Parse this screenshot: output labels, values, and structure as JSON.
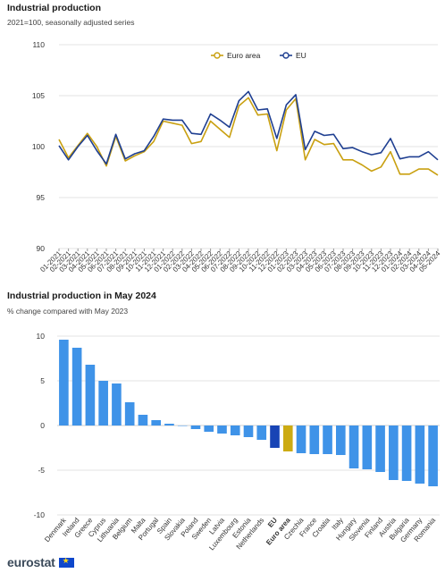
{
  "charts": {
    "line": {
      "title": "Industrial production",
      "subtitle": "2021=100, seasonally adjusted series"
    },
    "bar": {
      "title": "Industrial production in May 2024",
      "subtitle": "% change compared with May 2023"
    }
  },
  "footer": {
    "brand": "eurostat"
  },
  "colors": {
    "euro_area": "#c9a010",
    "eu": "#1f3f91",
    "bar_country": "#3f93e8",
    "bar_eu": "#1844b5",
    "bar_euro_area": "#ccab13",
    "grid": "#e3e3e3"
  },
  "chart_data": [
    {
      "type": "line",
      "title": "Industrial production",
      "subtitle": "2021=100, seasonally adjusted series",
      "x": [
        "01-2021",
        "02-2021",
        "03-2021",
        "04-2021",
        "05-2021",
        "06-2021",
        "07-2021",
        "08-2021",
        "09-2021",
        "10-2021",
        "11-2021",
        "12-2021",
        "01-2022",
        "02-2022",
        "03-2022",
        "04-2022",
        "05-2022",
        "06-2022",
        "07-2022",
        "08-2022",
        "09-2022",
        "10-2022",
        "11-2022",
        "12-2022",
        "01-2023",
        "02-2023",
        "03-2023",
        "04-2023",
        "05-2023",
        "06-2023",
        "07-2023",
        "08-2023",
        "09-2023",
        "10-2023",
        "11-2023",
        "12-2023",
        "01-2024",
        "02-2024",
        "03-2024",
        "04-2024",
        "05-2024"
      ],
      "series": [
        {
          "name": "Euro area",
          "color": "#c9a010",
          "values": [
            100.7,
            98.9,
            100.1,
            101.3,
            100.0,
            98.1,
            101.0,
            98.6,
            99.1,
            99.5,
            100.5,
            102.5,
            102.3,
            102.1,
            100.3,
            100.5,
            102.5,
            101.7,
            100.9,
            104.0,
            104.8,
            103.1,
            103.2,
            99.6,
            103.6,
            104.7,
            98.7,
            100.7,
            100.2,
            100.3,
            98.7,
            98.7,
            98.2,
            97.6,
            98.0,
            99.5,
            97.3,
            97.3,
            97.8,
            97.8,
            97.2
          ]
        },
        {
          "name": "EU",
          "color": "#1f3f91",
          "values": [
            100.1,
            98.7,
            100.0,
            101.1,
            99.6,
            98.3,
            101.2,
            98.8,
            99.3,
            99.6,
            101.0,
            102.7,
            102.6,
            102.6,
            101.3,
            101.2,
            103.2,
            102.6,
            101.9,
            104.5,
            105.4,
            103.6,
            103.7,
            100.8,
            104.1,
            105.1,
            99.7,
            101.5,
            101.1,
            101.2,
            99.8,
            99.9,
            99.5,
            99.2,
            99.4,
            100.8,
            98.8,
            99.0,
            99.0,
            99.5,
            98.7
          ]
        }
      ],
      "ylim": [
        90,
        110
      ],
      "yticks": [
        90,
        95,
        100,
        105,
        110
      ],
      "legend": "top-center",
      "grid": true
    },
    {
      "type": "bar",
      "title": "Industrial production in May 2024",
      "subtitle": "% change compared with May 2023",
      "categories": [
        "Denmark",
        "Ireland",
        "Greece",
        "Cyprus",
        "Lithuania",
        "Belgium",
        "Malta",
        "Portugal",
        "Spain",
        "Slovakia",
        "Poland",
        "Sweden",
        "Latvia",
        "Luxembourg",
        "Estonia",
        "Netherlands",
        "EU",
        "Euro area",
        "Czechia",
        "France",
        "Croatia",
        "Italy",
        "Hungary",
        "Slovenia",
        "Finland",
        "Austria",
        "Bulgaria",
        "Germany",
        "Romania"
      ],
      "values": [
        9.6,
        8.7,
        6.8,
        5.0,
        4.7,
        2.6,
        1.2,
        0.6,
        0.2,
        0.0,
        -0.4,
        -0.7,
        -0.9,
        -1.1,
        -1.3,
        -1.6,
        -2.5,
        -2.9,
        -3.1,
        -3.2,
        -3.2,
        -3.3,
        -4.8,
        -4.9,
        -5.2,
        -6.1,
        -6.2,
        -6.5,
        -6.8
      ],
      "highlight": {
        "EU": "#1844b5",
        "Euro area": "#ccab13"
      },
      "ylim": [
        -10,
        10
      ],
      "yticks": [
        -10,
        -5,
        0,
        5,
        10
      ],
      "grid": true
    }
  ]
}
